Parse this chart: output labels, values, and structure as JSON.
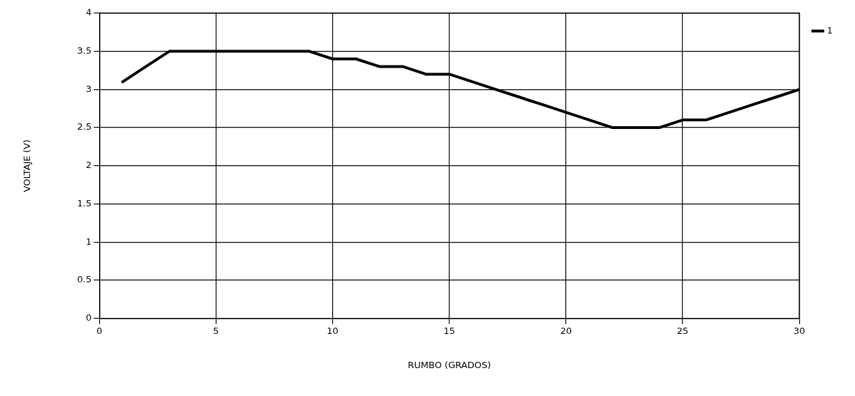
{
  "chart_data": {
    "type": "line",
    "xlabel": "RUMBO (GRADOS)",
    "ylabel": "VOLTAJE (V)",
    "x": [
      1,
      2,
      3,
      4,
      5,
      6,
      7,
      8,
      9,
      10,
      11,
      12,
      13,
      14,
      15,
      16,
      17,
      18,
      19,
      20,
      21,
      22,
      23,
      24,
      25,
      26,
      27,
      28,
      29,
      30
    ],
    "series": [
      {
        "name": "1",
        "color": "#000000",
        "values": [
          3.1,
          3.3,
          3.5,
          3.5,
          3.5,
          3.5,
          3.5,
          3.5,
          3.5,
          3.4,
          3.4,
          3.3,
          3.3,
          3.2,
          3.2,
          3.1,
          3.0,
          2.9,
          2.8,
          2.7,
          2.6,
          2.5,
          2.5,
          2.5,
          2.6,
          2.6,
          2.7,
          2.8,
          2.9,
          3.0
        ]
      }
    ],
    "xlim": [
      0,
      30
    ],
    "xticks": [
      0,
      5,
      10,
      15,
      20,
      25,
      30
    ],
    "ylim": [
      0,
      4
    ],
    "yticks": [
      0,
      0.5,
      1,
      1.5,
      2,
      2.5,
      3,
      3.5,
      4
    ],
    "grid": true,
    "legend": "top right",
    "marker": "none",
    "line_style": "solid"
  }
}
